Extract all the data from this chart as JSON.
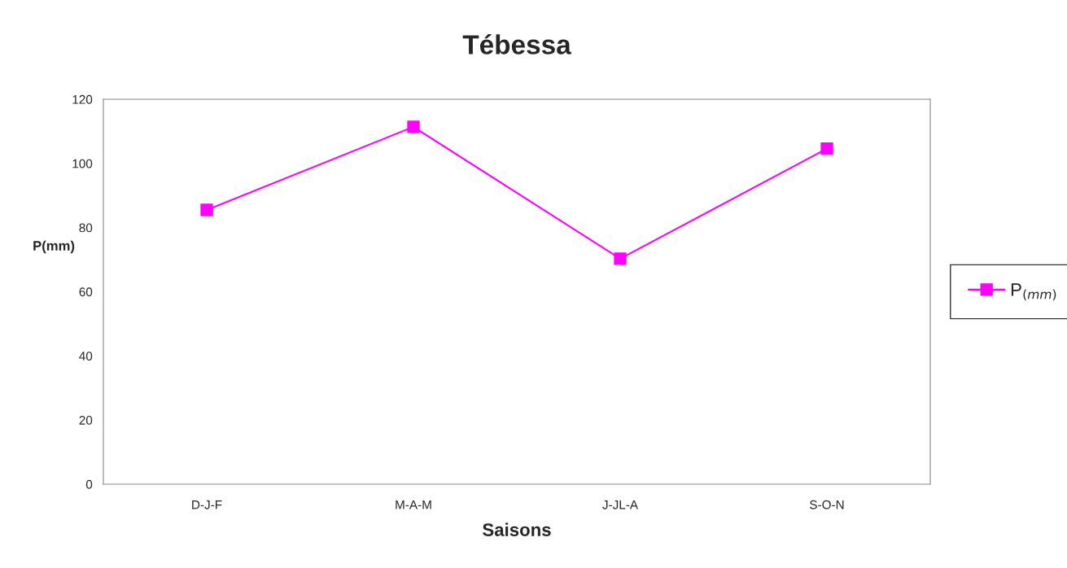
{
  "chart_data": {
    "type": "line",
    "title": "Tébessa",
    "xlabel": "Saisons",
    "ylabel": "P(mm)",
    "categories": [
      "D-J-F",
      "M-A-M",
      "J-JL-A",
      "S-O-N"
    ],
    "series": [
      {
        "name": "P$_{(mm)}$",
        "color": "#ff00ff",
        "values": [
          85.5,
          111.4,
          70.3,
          104.6
        ]
      }
    ],
    "ylim": [
      0,
      120
    ],
    "yticks": [
      0,
      20,
      40,
      60,
      80,
      100,
      120
    ],
    "grid": false,
    "legend": "right",
    "marker": "square",
    "line_style": "solid"
  }
}
